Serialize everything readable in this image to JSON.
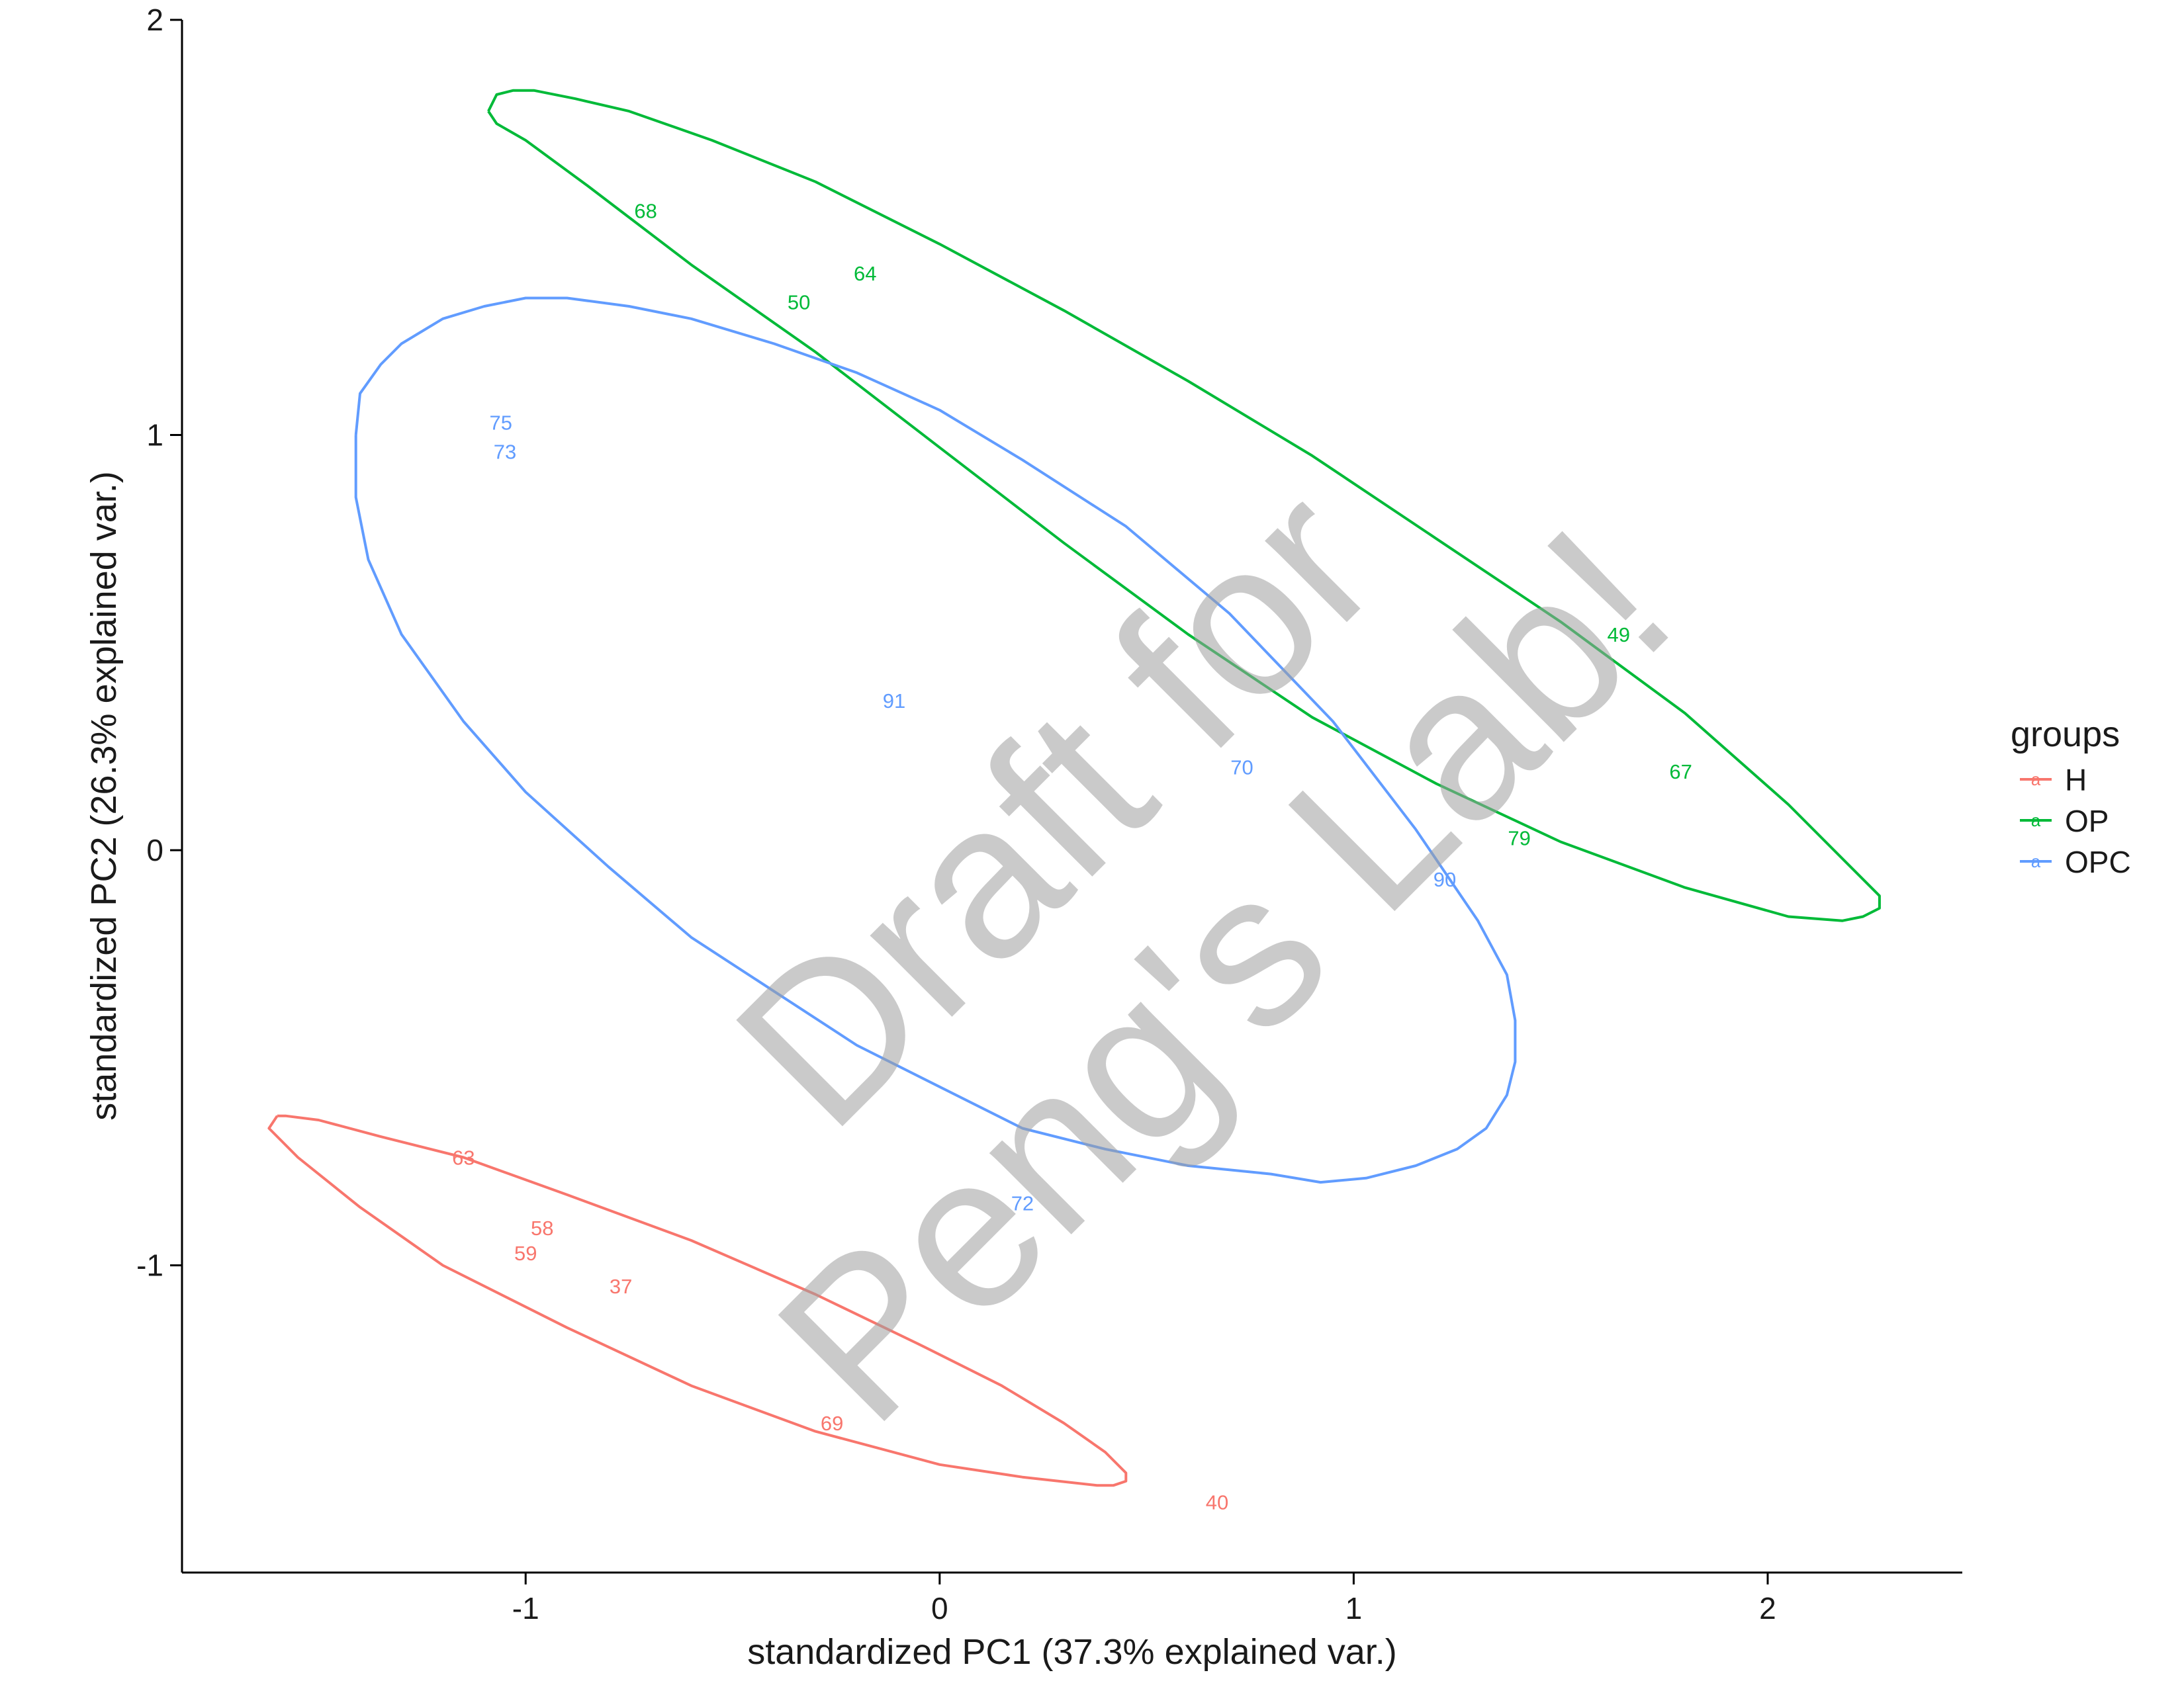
{
  "chart_data": {
    "type": "scatter",
    "xlabel": "standardized PC1 (37.3% explained var.)",
    "ylabel": "standardized PC2 (26.3% explained var.)",
    "xlim": [
      -1.83,
      2.47
    ],
    "ylim": [
      -1.74,
      2.0
    ],
    "x_ticks": [
      -1,
      0,
      1,
      2
    ],
    "y_ticks": [
      -1,
      0,
      1,
      2
    ],
    "x_tick_labels": [
      "-1",
      "0",
      "1",
      "2"
    ],
    "y_tick_labels": [
      "-1",
      "0",
      "1",
      "2"
    ],
    "grid": false,
    "legend": {
      "title": "groups",
      "position": "right",
      "entries": [
        {
          "label": "H",
          "color": "#F8766D",
          "glyph": "a"
        },
        {
          "label": "OP",
          "color": "#00BA38",
          "glyph": "a"
        },
        {
          "label": "OPC",
          "color": "#619CFF",
          "glyph": "a"
        }
      ]
    },
    "series": [
      {
        "name": "H",
        "color": "#F8766D",
        "points": [
          {
            "label": "63",
            "x": -1.15,
            "y": -0.74
          },
          {
            "label": "58",
            "x": -0.96,
            "y": -0.91
          },
          {
            "label": "59",
            "x": -1.0,
            "y": -0.97
          },
          {
            "label": "37",
            "x": -0.77,
            "y": -1.05
          },
          {
            "label": "69",
            "x": -0.26,
            "y": -1.38
          },
          {
            "label": "40",
            "x": 0.67,
            "y": -1.57
          }
        ],
        "ellipse": [
          [
            -1.6,
            -0.64
          ],
          [
            -1.58,
            -0.64
          ],
          [
            -1.5,
            -0.65
          ],
          [
            -1.35,
            -0.69
          ],
          [
            -1.15,
            -0.74
          ],
          [
            -0.9,
            -0.83
          ],
          [
            -0.6,
            -0.94
          ],
          [
            -0.3,
            -1.07
          ],
          [
            -0.05,
            -1.19
          ],
          [
            0.15,
            -1.29
          ],
          [
            0.3,
            -1.38
          ],
          [
            0.4,
            -1.45
          ],
          [
            0.45,
            -1.5
          ],
          [
            0.45,
            -1.52
          ],
          [
            0.42,
            -1.53
          ],
          [
            0.38,
            -1.53
          ],
          [
            0.2,
            -1.51
          ],
          [
            0.0,
            -1.48
          ],
          [
            -0.3,
            -1.4
          ],
          [
            -0.6,
            -1.29
          ],
          [
            -0.9,
            -1.15
          ],
          [
            -1.2,
            -1.0
          ],
          [
            -1.4,
            -0.86
          ],
          [
            -1.55,
            -0.74
          ],
          [
            -1.62,
            -0.67
          ],
          [
            -1.6,
            -0.64
          ]
        ]
      },
      {
        "name": "OP",
        "color": "#00BA38",
        "points": [
          {
            "label": "68",
            "x": -0.71,
            "y": 1.54
          },
          {
            "label": "64",
            "x": -0.18,
            "y": 1.39
          },
          {
            "label": "50",
            "x": -0.34,
            "y": 1.32
          },
          {
            "label": "49",
            "x": 1.64,
            "y": 0.52
          },
          {
            "label": "67",
            "x": 1.79,
            "y": 0.19
          },
          {
            "label": "79",
            "x": 1.4,
            "y": 0.03
          }
        ],
        "ellipse": [
          [
            -1.09,
            1.78
          ],
          [
            -1.07,
            1.82
          ],
          [
            -1.03,
            1.83
          ],
          [
            -0.98,
            1.83
          ],
          [
            -0.88,
            1.81
          ],
          [
            -0.75,
            1.78
          ],
          [
            -0.55,
            1.71
          ],
          [
            -0.3,
            1.61
          ],
          [
            0.0,
            1.46
          ],
          [
            0.3,
            1.3
          ],
          [
            0.6,
            1.13
          ],
          [
            0.9,
            0.95
          ],
          [
            1.2,
            0.75
          ],
          [
            1.5,
            0.55
          ],
          [
            1.8,
            0.33
          ],
          [
            2.05,
            0.11
          ],
          [
            2.2,
            -0.04
          ],
          [
            2.27,
            -0.11
          ],
          [
            2.27,
            -0.14
          ],
          [
            2.23,
            -0.16
          ],
          [
            2.18,
            -0.17
          ],
          [
            2.05,
            -0.16
          ],
          [
            1.8,
            -0.09
          ],
          [
            1.5,
            0.02
          ],
          [
            1.2,
            0.16
          ],
          [
            0.9,
            0.32
          ],
          [
            0.6,
            0.52
          ],
          [
            0.3,
            0.74
          ],
          [
            0.0,
            0.97
          ],
          [
            -0.3,
            1.2
          ],
          [
            -0.6,
            1.41
          ],
          [
            -0.85,
            1.6
          ],
          [
            -1.0,
            1.71
          ],
          [
            -1.07,
            1.75
          ],
          [
            -1.09,
            1.78
          ]
        ]
      },
      {
        "name": "OPC",
        "color": "#619CFF",
        "points": [
          {
            "label": "75",
            "x": -1.06,
            "y": 1.03
          },
          {
            "label": "73",
            "x": -1.05,
            "y": 0.96
          },
          {
            "label": "91",
            "x": -0.11,
            "y": 0.36
          },
          {
            "label": "70",
            "x": 0.73,
            "y": 0.2
          },
          {
            "label": "90",
            "x": 1.22,
            "y": -0.07
          },
          {
            "label": "72",
            "x": 0.2,
            "y": -0.85
          }
        ],
        "ellipse": [
          [
            -1.41,
            1.0
          ],
          [
            -1.4,
            1.1
          ],
          [
            -1.35,
            1.17
          ],
          [
            -1.3,
            1.22
          ],
          [
            -1.2,
            1.28
          ],
          [
            -1.1,
            1.31
          ],
          [
            -1.0,
            1.33
          ],
          [
            -0.9,
            1.33
          ],
          [
            -0.75,
            1.31
          ],
          [
            -0.6,
            1.28
          ],
          [
            -0.4,
            1.22
          ],
          [
            -0.2,
            1.15
          ],
          [
            0.0,
            1.06
          ],
          [
            0.2,
            0.94
          ],
          [
            0.45,
            0.78
          ],
          [
            0.7,
            0.57
          ],
          [
            0.95,
            0.31
          ],
          [
            1.15,
            0.05
          ],
          [
            1.3,
            -0.17
          ],
          [
            1.37,
            -0.3
          ],
          [
            1.39,
            -0.41
          ],
          [
            1.39,
            -0.51
          ],
          [
            1.37,
            -0.59
          ],
          [
            1.32,
            -0.67
          ],
          [
            1.25,
            -0.72
          ],
          [
            1.15,
            -0.76
          ],
          [
            1.03,
            -0.79
          ],
          [
            0.92,
            -0.8
          ],
          [
            0.8,
            -0.78
          ],
          [
            0.6,
            -0.76
          ],
          [
            0.4,
            -0.72
          ],
          [
            0.2,
            -0.67
          ],
          [
            0.0,
            -0.57
          ],
          [
            -0.2,
            -0.47
          ],
          [
            -0.4,
            -0.34
          ],
          [
            -0.6,
            -0.21
          ],
          [
            -0.8,
            -0.04
          ],
          [
            -1.0,
            0.14
          ],
          [
            -1.15,
            0.31
          ],
          [
            -1.3,
            0.52
          ],
          [
            -1.38,
            0.7
          ],
          [
            -1.41,
            0.85
          ],
          [
            -1.41,
            1.0
          ]
        ]
      }
    ]
  },
  "watermark": {
    "lines": [
      "Draft for",
      "Peng's Lab!"
    ]
  }
}
